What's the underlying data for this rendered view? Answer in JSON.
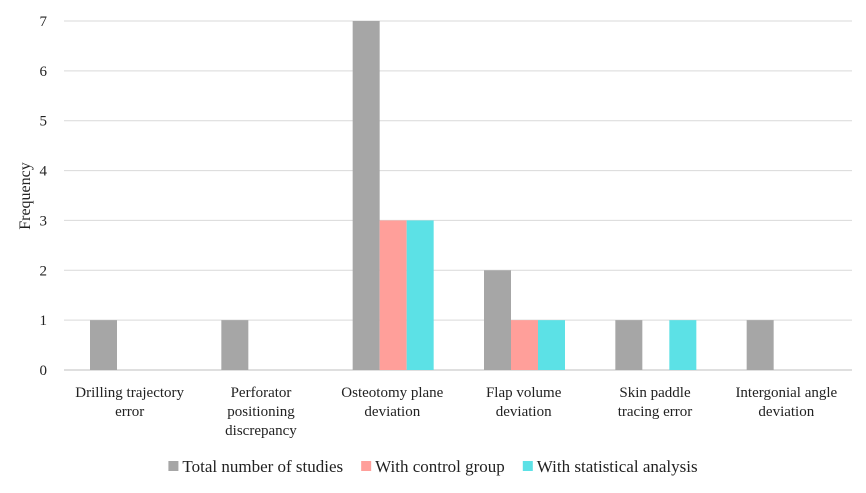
{
  "chart_data": {
    "type": "bar",
    "title": "",
    "xlabel": "",
    "ylabel": "Frequency",
    "ylim": [
      0,
      7
    ],
    "yticks": [
      0,
      1,
      2,
      3,
      4,
      5,
      6,
      7
    ],
    "grid": true,
    "legend_position": "bottom",
    "categories": [
      [
        "Drilling trajectory",
        "error"
      ],
      [
        "Perforator",
        "positioning",
        "discrepancy"
      ],
      [
        "Osteotomy plane",
        "deviation"
      ],
      [
        "Flap volume",
        "deviation"
      ],
      [
        "Skin paddle",
        "tracing error"
      ],
      [
        "Intergonial angle",
        "deviation"
      ]
    ],
    "series": [
      {
        "name": "Total number of studies",
        "color": "#a6a6a6",
        "values": [
          1,
          1,
          7,
          2,
          1,
          1
        ]
      },
      {
        "name": "With control group",
        "color": "#ff9f9a",
        "values": [
          0,
          0,
          3,
          1,
          0,
          0
        ]
      },
      {
        "name": "With statistical analysis",
        "color": "#5ce1e6",
        "values": [
          0,
          0,
          3,
          1,
          1,
          0
        ]
      }
    ]
  }
}
